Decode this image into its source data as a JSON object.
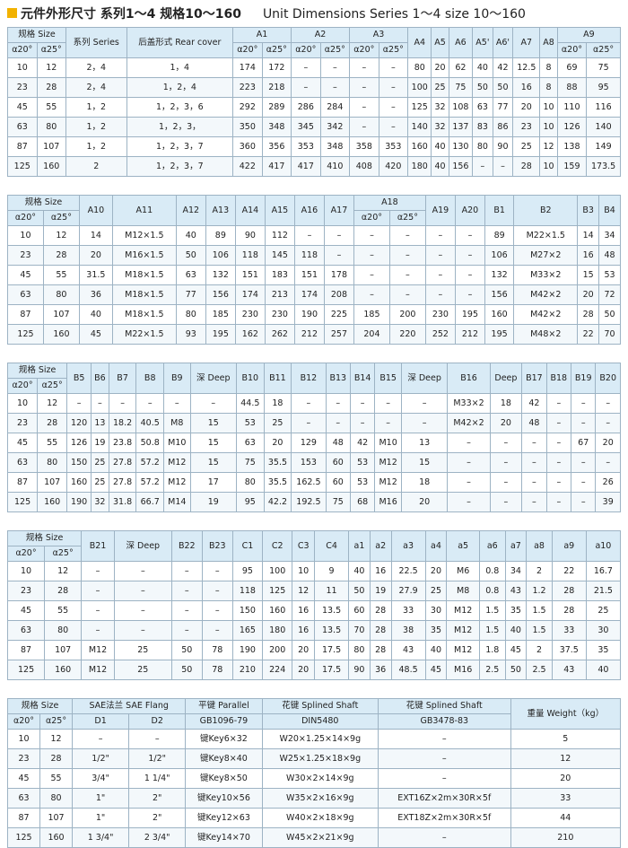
{
  "header": {
    "title_cn": "元件外形尺寸  系列1～4  规格10～160",
    "title_en": "Unit Dimensions Series 1～4 size 10～160"
  },
  "tables": [
    {
      "head": [
        [
          "规格 Size",
          "系列 Series",
          "后盖形式 Rear cover",
          "A1",
          "A2",
          "A3",
          "A4",
          "A5",
          "A6",
          "A5'",
          "A6'",
          "A7",
          "A8",
          "A9"
        ],
        [
          "α20°",
          "α25°",
          "α20°",
          "α25°",
          "α20°",
          "α25°",
          "α20°",
          "α25°",
          "α20°",
          "α25°"
        ]
      ],
      "rows": [
        [
          "10",
          "12",
          "2，4",
          "1，4",
          "174",
          "172",
          "–",
          "–",
          "–",
          "–",
          "80",
          "20",
          "62",
          "40",
          "42",
          "12.5",
          "8",
          "69",
          "75"
        ],
        [
          "23",
          "28",
          "2，4",
          "1，2，4",
          "223",
          "218",
          "–",
          "–",
          "–",
          "–",
          "100",
          "25",
          "75",
          "50",
          "50",
          "16",
          "8",
          "88",
          "95"
        ],
        [
          "45",
          "55",
          "1，2",
          "1，2，3，6",
          "292",
          "289",
          "286",
          "284",
          "–",
          "–",
          "125",
          "32",
          "108",
          "63",
          "77",
          "20",
          "10",
          "110",
          "116"
        ],
        [
          "63",
          "80",
          "1，2",
          "1，2，3，",
          "350",
          "348",
          "345",
          "342",
          "–",
          "–",
          "140",
          "32",
          "137",
          "83",
          "86",
          "23",
          "10",
          "126",
          "140"
        ],
        [
          "87",
          "107",
          "1，2",
          "1，2，3，7",
          "360",
          "356",
          "353",
          "348",
          "358",
          "353",
          "160",
          "40",
          "130",
          "80",
          "90",
          "25",
          "12",
          "138",
          "149"
        ],
        [
          "125",
          "160",
          "2",
          "1，2，3，7",
          "422",
          "417",
          "417",
          "410",
          "408",
          "420",
          "180",
          "40",
          "156",
          "–",
          "–",
          "28",
          "10",
          "159",
          "173.5"
        ]
      ]
    },
    {
      "head": [
        [
          "规格 Size",
          "A10",
          "A11",
          "A12",
          "A13",
          "A14",
          "A15",
          "A16",
          "A17",
          "A18",
          "A19",
          "A20",
          "B1",
          "B2",
          "B3",
          "B4"
        ],
        [
          "α20°",
          "α25°",
          "α20°",
          "α25°"
        ]
      ],
      "rows": [
        [
          "10",
          "12",
          "14",
          "M12×1.5",
          "40",
          "89",
          "90",
          "112",
          "–",
          "–",
          "–",
          "–",
          "–",
          "–",
          "89",
          "M22×1.5",
          "14",
          "34"
        ],
        [
          "23",
          "28",
          "20",
          "M16×1.5",
          "50",
          "106",
          "118",
          "145",
          "118",
          "–",
          "–",
          "–",
          "–",
          "–",
          "106",
          "M27×2",
          "16",
          "48"
        ],
        [
          "45",
          "55",
          "31.5",
          "M18×1.5",
          "63",
          "132",
          "151",
          "183",
          "151",
          "178",
          "–",
          "–",
          "–",
          "–",
          "132",
          "M33×2",
          "15",
          "53"
        ],
        [
          "63",
          "80",
          "36",
          "M18×1.5",
          "77",
          "156",
          "174",
          "213",
          "174",
          "208",
          "–",
          "–",
          "–",
          "–",
          "156",
          "M42×2",
          "20",
          "72"
        ],
        [
          "87",
          "107",
          "40",
          "M18×1.5",
          "80",
          "185",
          "230",
          "230",
          "190",
          "225",
          "185",
          "200",
          "230",
          "195",
          "160",
          "M42×2",
          "28",
          "50"
        ],
        [
          "125",
          "160",
          "45",
          "M22×1.5",
          "93",
          "195",
          "162",
          "262",
          "212",
          "257",
          "204",
          "220",
          "252",
          "212",
          "195",
          "M48×2",
          "22",
          "70"
        ]
      ]
    },
    {
      "head": [
        [
          "规格 Size",
          "B5",
          "B6",
          "B7",
          "B8",
          "B9",
          "深 Deep",
          "B10",
          "B11",
          "B12",
          "B13",
          "B14",
          "B15",
          "深 Deep",
          "B16",
          "Deep",
          "B17",
          "B18",
          "B19",
          "B20"
        ],
        [
          "α20°",
          "α25°"
        ]
      ],
      "rows": [
        [
          "10",
          "12",
          "–",
          "–",
          "–",
          "–",
          "–",
          "–",
          "44.5",
          "18",
          "–",
          "–",
          "–",
          "–",
          "–",
          "M33×2",
          "18",
          "42",
          "–",
          "–",
          "–"
        ],
        [
          "23",
          "28",
          "120",
          "13",
          "18.2",
          "40.5",
          "M8",
          "15",
          "53",
          "25",
          "–",
          "–",
          "–",
          "–",
          "–",
          "M42×2",
          "20",
          "48",
          "–",
          "–",
          "–"
        ],
        [
          "45",
          "55",
          "126",
          "19",
          "23.8",
          "50.8",
          "M10",
          "15",
          "63",
          "20",
          "129",
          "48",
          "42",
          "M10",
          "13",
          "–",
          "–",
          "–",
          "–",
          "67",
          "20"
        ],
        [
          "63",
          "80",
          "150",
          "25",
          "27.8",
          "57.2",
          "M12",
          "15",
          "75",
          "35.5",
          "153",
          "60",
          "53",
          "M12",
          "15",
          "–",
          "–",
          "–",
          "–",
          "–",
          "–"
        ],
        [
          "87",
          "107",
          "160",
          "25",
          "27.8",
          "57.2",
          "M12",
          "17",
          "80",
          "35.5",
          "162.5",
          "60",
          "53",
          "M12",
          "18",
          "–",
          "–",
          "–",
          "–",
          "–",
          "26"
        ],
        [
          "125",
          "160",
          "190",
          "32",
          "31.8",
          "66.7",
          "M14",
          "19",
          "95",
          "42.2",
          "192.5",
          "75",
          "68",
          "M16",
          "20",
          "–",
          "–",
          "–",
          "–",
          "–",
          "39"
        ]
      ]
    },
    {
      "head": [
        [
          "规格 Size",
          "B21",
          "深 Deep",
          "B22",
          "B23",
          "C1",
          "C2",
          "C3",
          "C4",
          "a1",
          "a2",
          "a3",
          "a4",
          "a5",
          "a6",
          "a7",
          "a8",
          "a9",
          "a10"
        ],
        [
          "α20°",
          "α25°"
        ]
      ],
      "rows": [
        [
          "10",
          "12",
          "–",
          "–",
          "–",
          "–",
          "95",
          "100",
          "10",
          "9",
          "40",
          "16",
          "22.5",
          "20",
          "M6",
          "0.8",
          "34",
          "2",
          "22",
          "16.7"
        ],
        [
          "23",
          "28",
          "–",
          "–",
          "–",
          "–",
          "118",
          "125",
          "12",
          "11",
          "50",
          "19",
          "27.9",
          "25",
          "M8",
          "0.8",
          "43",
          "1.2",
          "28",
          "21.5"
        ],
        [
          "45",
          "55",
          "–",
          "–",
          "–",
          "–",
          "150",
          "160",
          "16",
          "13.5",
          "60",
          "28",
          "33",
          "30",
          "M12",
          "1.5",
          "35",
          "1.5",
          "28",
          "25"
        ],
        [
          "63",
          "80",
          "–",
          "–",
          "–",
          "–",
          "165",
          "180",
          "16",
          "13.5",
          "70",
          "28",
          "38",
          "35",
          "M12",
          "1.5",
          "40",
          "1.5",
          "33",
          "30"
        ],
        [
          "87",
          "107",
          "M12",
          "25",
          "50",
          "78",
          "190",
          "200",
          "20",
          "17.5",
          "80",
          "28",
          "43",
          "40",
          "M12",
          "1.8",
          "45",
          "2",
          "37.5",
          "35"
        ],
        [
          "125",
          "160",
          "M12",
          "25",
          "50",
          "78",
          "210",
          "224",
          "20",
          "17.5",
          "90",
          "36",
          "48.5",
          "45",
          "M16",
          "2.5",
          "50",
          "2.5",
          "43",
          "40"
        ]
      ]
    },
    {
      "head": [
        [
          "规格 Size",
          "SAE法兰 SAE Flang",
          "平键 Parallel",
          "花键 Splined Shaft",
          "花键 Splined Shaft",
          "重量 Weight（kg）"
        ],
        [
          "α20°",
          "α25°",
          "D1",
          "D2",
          "GB1096-79",
          "DIN5480",
          "GB3478-83"
        ]
      ],
      "rows": [
        [
          "10",
          "12",
          "–",
          "–",
          "键Key6×32",
          "W20×1.25×14×9g",
          "–",
          "5"
        ],
        [
          "23",
          "28",
          "1/2\"",
          "1/2\"",
          "键Key8×40",
          "W25×1.25×18×9g",
          "–",
          "12"
        ],
        [
          "45",
          "55",
          "3/4\"",
          "1 1/4\"",
          "键Key8×50",
          "W30×2×14×9g",
          "–",
          "20"
        ],
        [
          "63",
          "80",
          "1\"",
          "2\"",
          "键Key10×56",
          "W35×2×16×9g",
          "EXT16Z×2m×30R×5f",
          "33"
        ],
        [
          "87",
          "107",
          "1\"",
          "2\"",
          "键Key12×63",
          "W40×2×18×9g",
          "EXT18Z×2m×30R×5f",
          "44"
        ],
        [
          "125",
          "160",
          "1 3/4\"",
          "2 3/4\"",
          "键Key14×70",
          "W45×2×21×9g",
          "–",
          "210"
        ]
      ]
    }
  ]
}
